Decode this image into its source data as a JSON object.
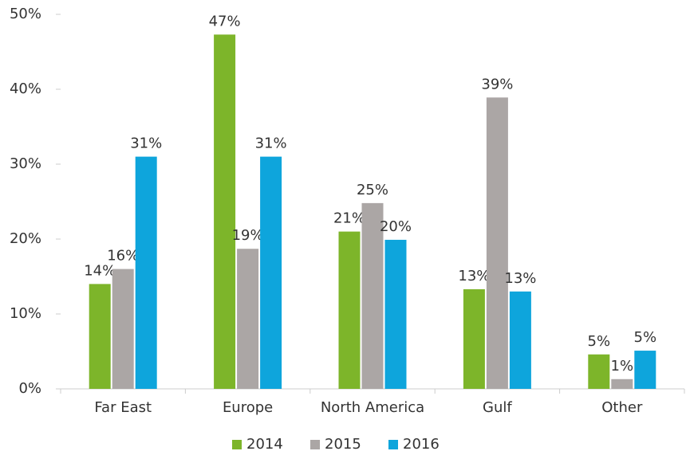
{
  "chart_data": {
    "type": "bar",
    "categories": [
      "Far East",
      "Europe",
      "North America",
      "Gulf",
      "Other"
    ],
    "series": [
      {
        "name": "2014",
        "color": "#7db52a",
        "values": [
          14.0,
          47.3,
          21.0,
          13.3,
          4.6
        ],
        "value_labels": [
          "14%",
          "47%",
          "21%",
          "13%",
          "5%"
        ]
      },
      {
        "name": "2015",
        "color": "#aba6a5",
        "values": [
          16.0,
          18.7,
          24.8,
          38.9,
          1.3
        ],
        "value_labels": [
          "16%",
          "19%",
          "25%",
          "39%",
          "1%"
        ]
      },
      {
        "name": "2016",
        "color": "#0ea5dc",
        "values": [
          31.0,
          31.0,
          19.9,
          13.0,
          5.1
        ],
        "value_labels": [
          "31%",
          "31%",
          "20%",
          "13%",
          "5%"
        ]
      }
    ],
    "ylim": [
      0,
      50
    ],
    "yticks": [
      {
        "value": 0,
        "label": "0%"
      },
      {
        "value": 10,
        "label": "10%"
      },
      {
        "value": 20,
        "label": "20%"
      },
      {
        "value": 30,
        "label": "30%"
      },
      {
        "value": 40,
        "label": "40%"
      },
      {
        "value": 50,
        "label": "50%"
      }
    ],
    "grid": false,
    "legend": "bottom"
  }
}
